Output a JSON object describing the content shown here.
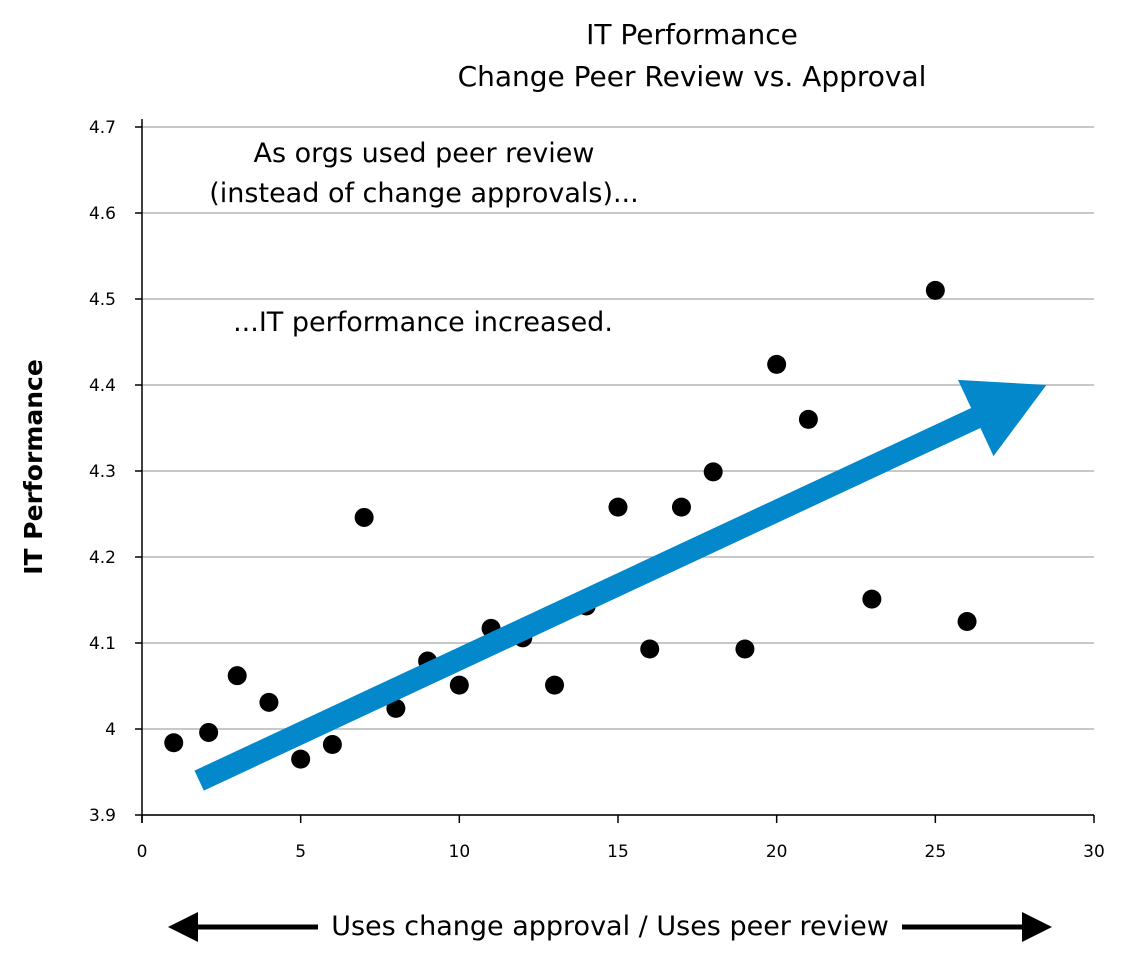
{
  "chart_data": {
    "type": "scatter",
    "title": "IT Performance",
    "subtitle": "Change Peer Review vs. Approval",
    "xlabel": "Uses change approval / Uses peer review",
    "ylabel": "IT Performance",
    "xlim": [
      0,
      30
    ],
    "ylim": [
      3.9,
      4.7
    ],
    "x_ticks": [
      "0",
      "5",
      "10",
      "15",
      "20",
      "25",
      "30"
    ],
    "y_ticks": [
      "3.9",
      "4",
      "4.1",
      "4.2",
      "4.3",
      "4.4",
      "4.5",
      "4.6",
      "4.7"
    ],
    "grid": true,
    "point_color": "#000000",
    "trend_arrow_color": "#0388cc",
    "trend_arrow": {
      "start": [
        1.8,
        3.94
      ],
      "end": [
        28.5,
        4.4
      ]
    },
    "annotations": [
      "As orgs used peer review",
      "(instead of change approvals)...",
      "...IT performance increased."
    ],
    "points": [
      {
        "x": 1,
        "y": 3.984
      },
      {
        "x": 2.1,
        "y": 3.996
      },
      {
        "x": 3,
        "y": 4.062
      },
      {
        "x": 4,
        "y": 4.031
      },
      {
        "x": 5,
        "y": 3.965
      },
      {
        "x": 6,
        "y": 3.982
      },
      {
        "x": 7,
        "y": 4.246
      },
      {
        "x": 8,
        "y": 4.024
      },
      {
        "x": 9,
        "y": 4.079
      },
      {
        "x": 10,
        "y": 4.051
      },
      {
        "x": 11,
        "y": 4.117
      },
      {
        "x": 12,
        "y": 4.106
      },
      {
        "x": 13,
        "y": 4.051
      },
      {
        "x": 14,
        "y": 4.143
      },
      {
        "x": 15,
        "y": 4.258
      },
      {
        "x": 16,
        "y": 4.093
      },
      {
        "x": 17,
        "y": 4.258
      },
      {
        "x": 18,
        "y": 4.299
      },
      {
        "x": 19,
        "y": 4.093
      },
      {
        "x": 20,
        "y": 4.424
      },
      {
        "x": 21,
        "y": 4.36
      },
      {
        "x": 23,
        "y": 4.151
      },
      {
        "x": 25,
        "y": 4.51
      },
      {
        "x": 26,
        "y": 4.125
      }
    ]
  }
}
